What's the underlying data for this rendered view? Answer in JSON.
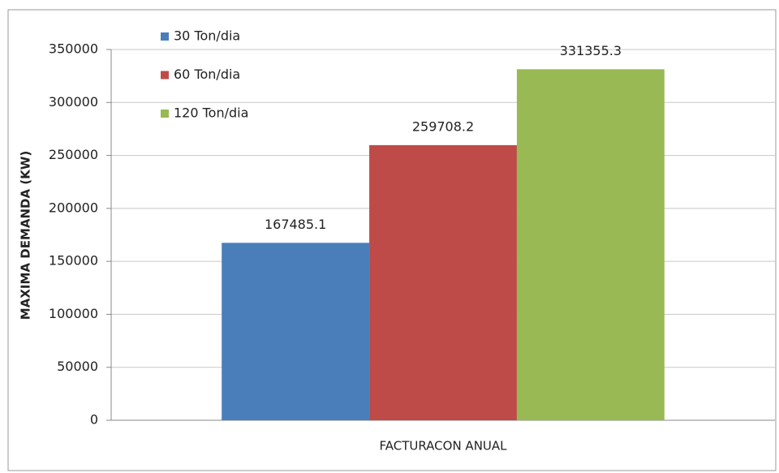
{
  "chart_data": {
    "type": "bar",
    "categories": [
      "FACTURACON ANUAL"
    ],
    "ylabel": "MAXIMA DEMANDA (KW)",
    "series": [
      {
        "name": "30 Ton/dia",
        "color": "#4a7ebb",
        "values": [
          167485.1
        ]
      },
      {
        "name": "60 Ton/dia",
        "color": "#be4b48",
        "values": [
          259708.2
        ]
      },
      {
        "name": "120 Ton/dia",
        "color": "#98b954",
        "values": [
          331355.3
        ]
      }
    ],
    "ylim": [
      0,
      350000
    ],
    "yticks": [
      0,
      50000,
      100000,
      150000,
      200000,
      250000,
      300000,
      350000
    ],
    "grid": true,
    "legend": "top-left"
  }
}
